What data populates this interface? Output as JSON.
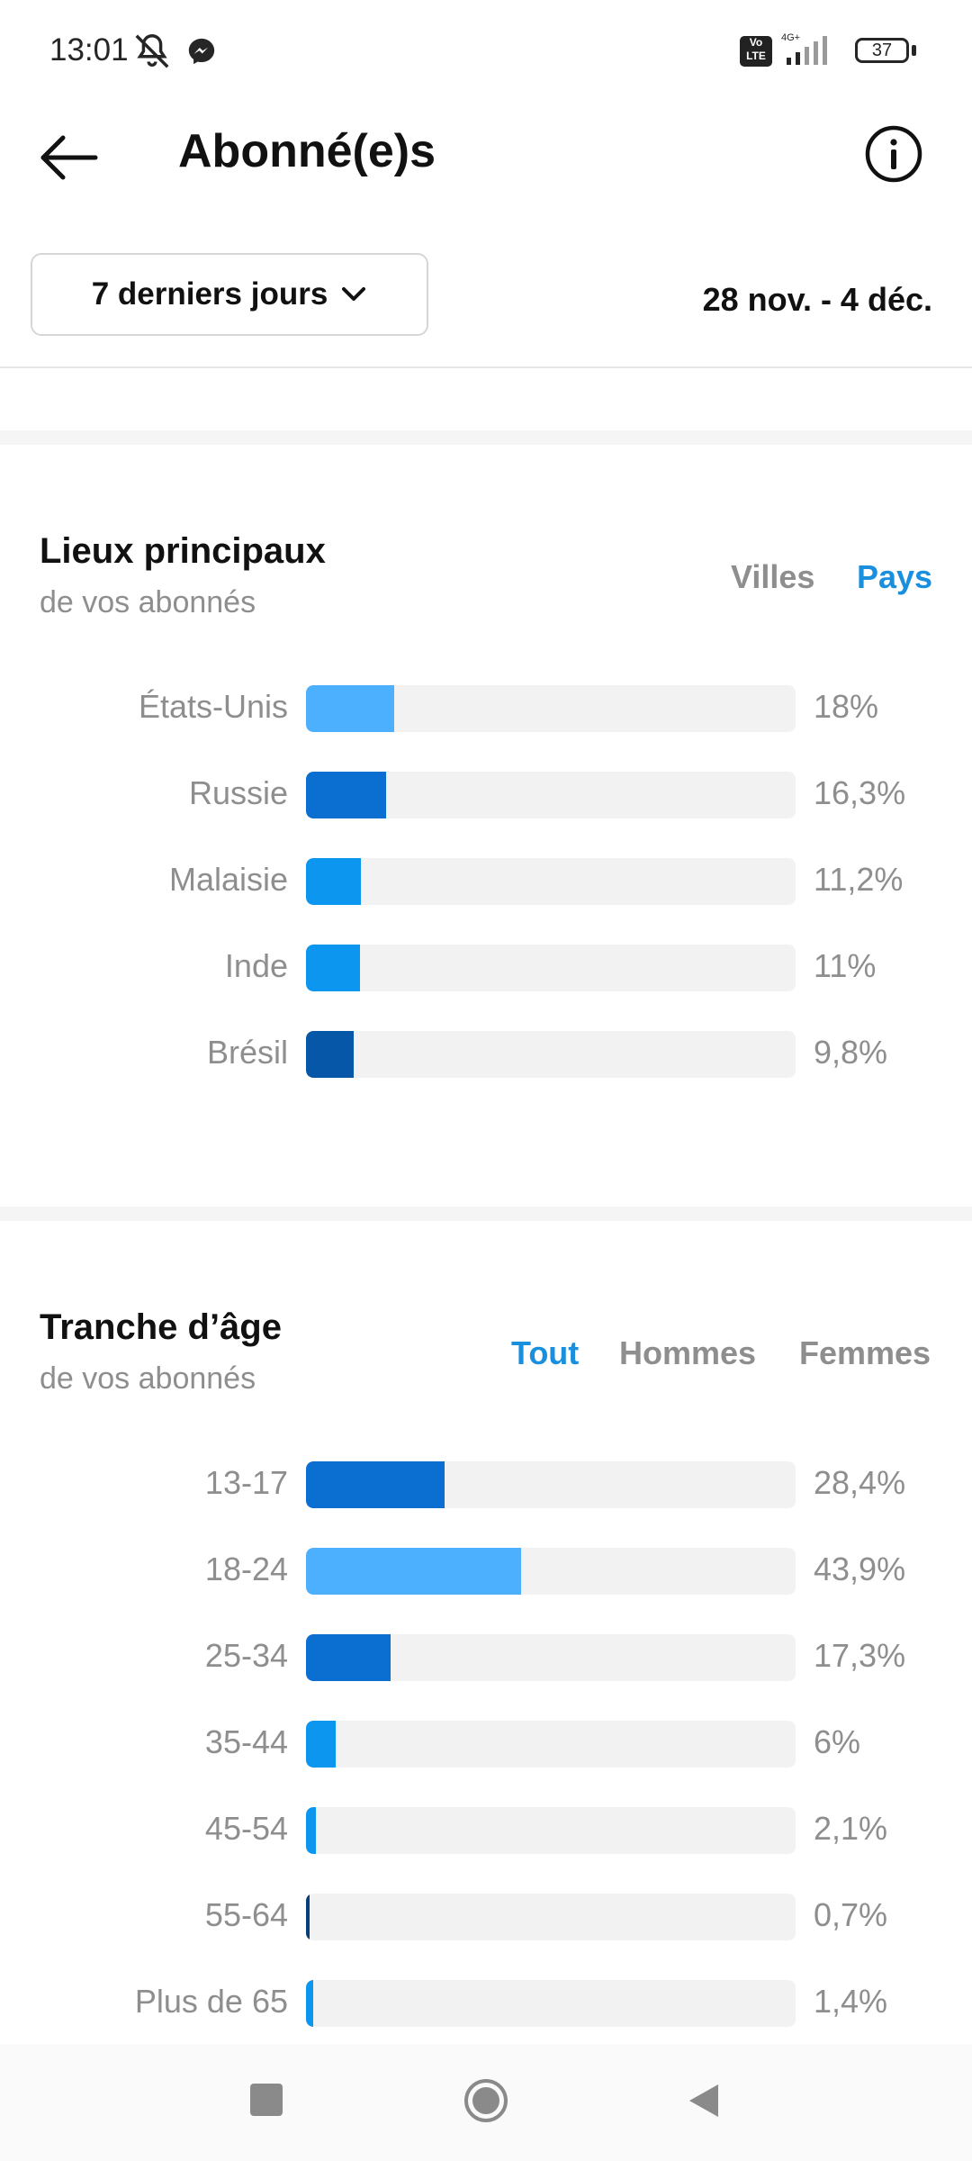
{
  "status_bar": {
    "time": "13:01",
    "battery": "37",
    "network": "4G+",
    "volte": "Vo LTE",
    "icons": [
      "mute-icon",
      "messenger-icon",
      "signal-icon",
      "battery-icon"
    ]
  },
  "header": {
    "title": "Abonné(e)s",
    "back_icon": "arrow-left-icon",
    "info_icon": "info-icon"
  },
  "filter": {
    "range_label": "7 derniers jours",
    "date_range": "28 nov. - 4 déc."
  },
  "locations": {
    "title": "Lieux principaux",
    "subtitle": "de vos abonnés",
    "tabs": [
      {
        "label": "Villes",
        "active": false
      },
      {
        "label": "Pays",
        "active": true
      }
    ],
    "rows": [
      {
        "label": "États-Unis",
        "value_text": "18%",
        "value": 18,
        "color": "#4db0ff"
      },
      {
        "label": "Russie",
        "value_text": "16,3%",
        "value": 16.3,
        "color": "#0a6fd1"
      },
      {
        "label": "Malaisie",
        "value_text": "11,2%",
        "value": 11.2,
        "color": "#0d96f0"
      },
      {
        "label": "Inde",
        "value_text": "11%",
        "value": 11,
        "color": "#0d96f0"
      },
      {
        "label": "Brésil",
        "value_text": "9,8%",
        "value": 9.8,
        "color": "#0657a8"
      }
    ]
  },
  "age": {
    "title": "Tranche d’âge",
    "subtitle": "de vos abonnés",
    "tabs": [
      {
        "label": "Tout",
        "active": true
      },
      {
        "label": "Hommes",
        "active": false
      },
      {
        "label": "Femmes",
        "active": false
      }
    ],
    "rows": [
      {
        "label": "13-17",
        "value_text": "28,4%",
        "value": 28.4,
        "color": "#0a6fd1"
      },
      {
        "label": "18-24",
        "value_text": "43,9%",
        "value": 43.9,
        "color": "#4db0ff"
      },
      {
        "label": "25-34",
        "value_text": "17,3%",
        "value": 17.3,
        "color": "#0a6fd1"
      },
      {
        "label": "35-44",
        "value_text": "6%",
        "value": 6,
        "color": "#0d96f0"
      },
      {
        "label": "45-54",
        "value_text": "2,1%",
        "value": 2.1,
        "color": "#0d96f0"
      },
      {
        "label": "55-64",
        "value_text": "0,7%",
        "value": 0.7,
        "color": "#063f7a"
      },
      {
        "label": "Plus de 65",
        "value_text": "1,4%",
        "value": 1.4,
        "color": "#0d96f0"
      }
    ]
  },
  "nav_bar": {
    "icons": [
      "recent-apps-icon",
      "home-icon",
      "back-triangle-icon"
    ]
  }
}
